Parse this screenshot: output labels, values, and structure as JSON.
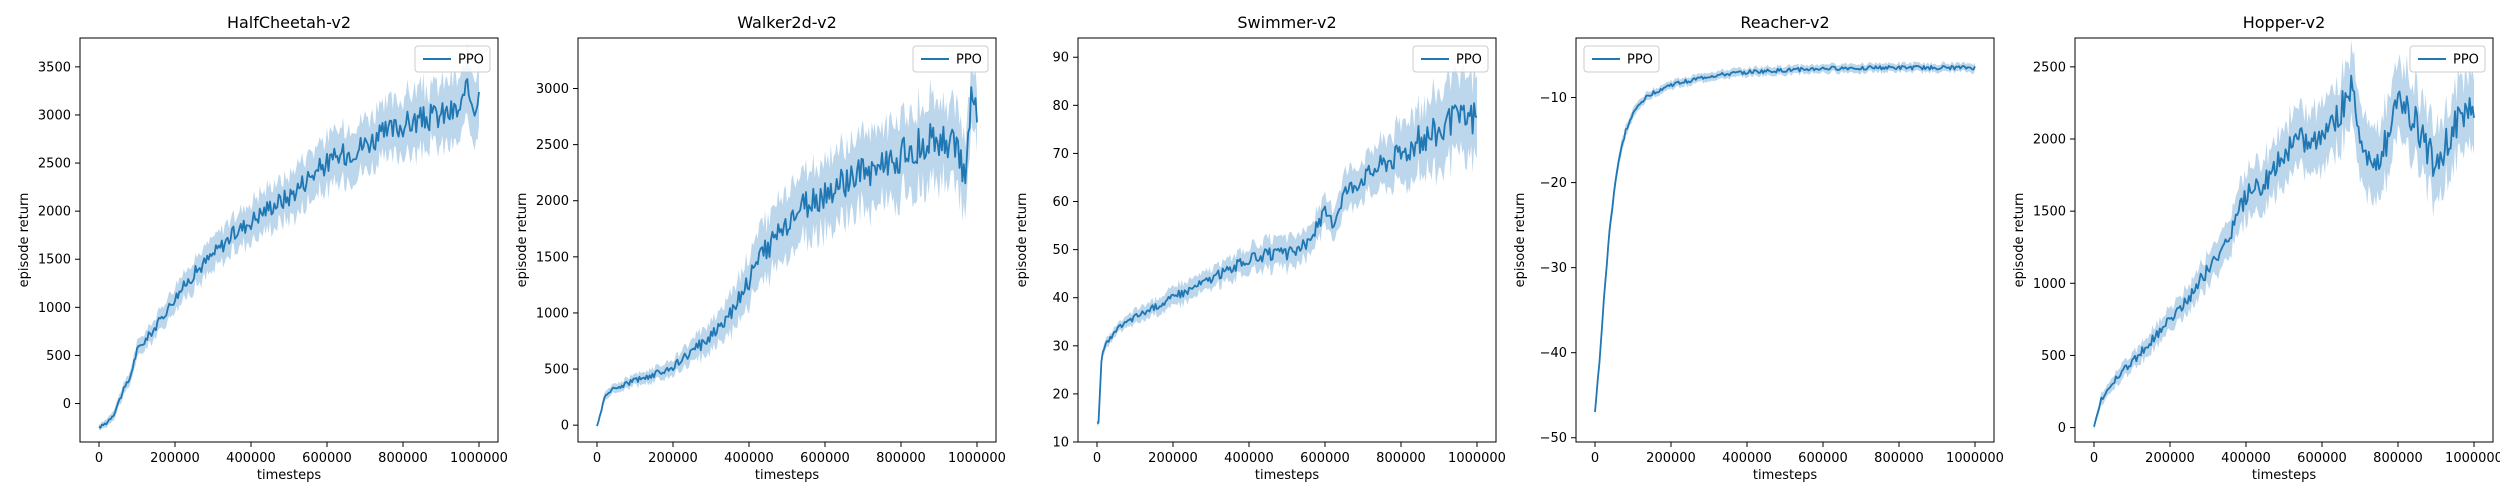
{
  "chart_data": [
    {
      "type": "line",
      "title": "HalfCheetah-v2",
      "xlabel": "timesteps",
      "ylabel": "episode return",
      "xlim": [
        -50000,
        1050000
      ],
      "ylim": [
        -400,
        3800
      ],
      "xticks": [
        0,
        200000,
        400000,
        600000,
        800000,
        1000000
      ],
      "xtick_labels": [
        "0",
        "200000",
        "400000",
        "600000",
        "800000",
        "1000000"
      ],
      "yticks": [
        0,
        500,
        1000,
        1500,
        2000,
        2500,
        3000,
        3500
      ],
      "ytick_labels": [
        "0",
        "500",
        "1000",
        "1500",
        "2000",
        "2500",
        "3000",
        "3500"
      ],
      "legend": "upper right",
      "series": [
        {
          "name": "PPO",
          "color": "#1f77b4",
          "band_color": "#a6c8e4",
          "x": [
            0,
            20000,
            40000,
            60000,
            80000,
            100000,
            120000,
            150000,
            200000,
            250000,
            300000,
            350000,
            400000,
            450000,
            500000,
            550000,
            600000,
            650000,
            700000,
            750000,
            800000,
            850000,
            900000,
            950000,
            970000,
            990000,
            1000000
          ],
          "y": [
            -250,
            -200,
            -100,
            100,
            250,
            550,
            650,
            800,
            1100,
            1350,
            1550,
            1750,
            1900,
            2050,
            2150,
            2350,
            2500,
            2600,
            2700,
            2800,
            2900,
            2950,
            3000,
            3050,
            3250,
            3100,
            3200
          ],
          "band": [
            30,
            40,
            50,
            60,
            70,
            80,
            90,
            100,
            120,
            150,
            170,
            180,
            200,
            220,
            240,
            250,
            260,
            270,
            280,
            290,
            300,
            310,
            320,
            330,
            330,
            330,
            320
          ]
        }
      ]
    },
    {
      "type": "line",
      "title": "Walker2d-v2",
      "xlabel": "timesteps",
      "ylabel": "episode return",
      "xlim": [
        -50000,
        1050000
      ],
      "ylim": [
        -150,
        3450
      ],
      "xticks": [
        0,
        200000,
        400000,
        600000,
        800000,
        1000000
      ],
      "xtick_labels": [
        "0",
        "200000",
        "400000",
        "600000",
        "800000",
        "1000000"
      ],
      "yticks": [
        0,
        500,
        1000,
        1500,
        2000,
        2500,
        3000
      ],
      "ytick_labels": [
        "0",
        "500",
        "1000",
        "1500",
        "2000",
        "2500",
        "3000"
      ],
      "legend": "upper right",
      "series": [
        {
          "name": "PPO",
          "color": "#1f77b4",
          "band_color": "#a6c8e4",
          "x": [
            0,
            10000,
            20000,
            30000,
            50000,
            100000,
            150000,
            200000,
            250000,
            300000,
            350000,
            400000,
            450000,
            500000,
            550000,
            600000,
            650000,
            700000,
            750000,
            800000,
            850000,
            900000,
            950000,
            970000,
            985000,
            1000000
          ],
          "y": [
            0,
            100,
            250,
            300,
            330,
            400,
            450,
            520,
            650,
            800,
            1000,
            1300,
            1600,
            1800,
            1950,
            2050,
            2150,
            2250,
            2300,
            2400,
            2500,
            2550,
            2500,
            2100,
            2900,
            2800
          ],
          "band": [
            20,
            30,
            40,
            40,
            40,
            50,
            60,
            70,
            100,
            130,
            170,
            220,
            260,
            280,
            300,
            310,
            320,
            330,
            340,
            350,
            350,
            350,
            350,
            350,
            300,
            250
          ]
        }
      ]
    },
    {
      "type": "line",
      "title": "Swimmer-v2",
      "xlabel": "timesteps",
      "ylabel": "episode return",
      "xlim": [
        -50000,
        1050000
      ],
      "ylim": [
        10,
        94
      ],
      "xticks": [
        0,
        200000,
        400000,
        600000,
        800000,
        1000000
      ],
      "xtick_labels": [
        "0",
        "200000",
        "400000",
        "600000",
        "800000",
        "1000000"
      ],
      "yticks": [
        10,
        20,
        30,
        40,
        50,
        60,
        70,
        80,
        90
      ],
      "ytick_labels": [
        "10",
        "20",
        "30",
        "40",
        "50",
        "60",
        "70",
        "80",
        "90"
      ],
      "legend": "upper right",
      "series": [
        {
          "name": "PPO",
          "color": "#1f77b4",
          "band_color": "#a6c8e4",
          "x": [
            0,
            5000,
            10000,
            15000,
            20000,
            40000,
            60000,
            100000,
            150000,
            200000,
            250000,
            300000,
            350000,
            400000,
            450000,
            500000,
            550000,
            580000,
            600000,
            620000,
            650000,
            700000,
            750000,
            800000,
            850000,
            900000,
            950000,
            1000000
          ],
          "y": [
            14,
            14,
            25,
            29,
            30,
            32,
            34,
            36,
            38,
            40,
            42,
            44,
            46,
            48,
            49,
            49,
            51,
            55,
            58,
            55,
            62,
            65,
            68,
            70,
            73,
            75,
            77,
            78
          ],
          "band": [
            0.5,
            0.5,
            1,
            1,
            1,
            1,
            1,
            1.5,
            1.5,
            2,
            2,
            2,
            2.5,
            2.5,
            3,
            3,
            3,
            3,
            3,
            3,
            4,
            4,
            5,
            6,
            7,
            8,
            8,
            9
          ]
        }
      ]
    },
    {
      "type": "line",
      "title": "Reacher-v2",
      "xlabel": "timesteps",
      "ylabel": "episode return",
      "xlim": [
        -50000,
        1050000
      ],
      "ylim": [
        -50.5,
        -3
      ],
      "xticks": [
        0,
        200000,
        400000,
        600000,
        800000,
        1000000
      ],
      "xtick_labels": [
        "0",
        "200000",
        "400000",
        "600000",
        "800000",
        "1000000"
      ],
      "yticks": [
        -50,
        -40,
        -30,
        -20,
        -10
      ],
      "ytick_labels": [
        "−50",
        "−40",
        "−30",
        "−20",
        "−10"
      ],
      "legend": "upper left",
      "series": [
        {
          "name": "PPO",
          "color": "#1f77b4",
          "band_color": "#a6c8e4",
          "x": [
            0,
            10000,
            20000,
            30000,
            40000,
            50000,
            60000,
            70000,
            80000,
            90000,
            100000,
            120000,
            150000,
            200000,
            250000,
            300000,
            400000,
            500000,
            600000,
            700000,
            800000,
            900000,
            1000000
          ],
          "y": [
            -47,
            -42,
            -36,
            -30,
            -25,
            -21,
            -18,
            -16,
            -14,
            -13,
            -12,
            -10.5,
            -9.5,
            -8.5,
            -8,
            -7.5,
            -7,
            -6.8,
            -6.6,
            -6.5,
            -6.5,
            -6.5,
            -6.5
          ],
          "band": [
            0.5,
            0.8,
            1,
            1,
            1,
            1,
            0.8,
            0.8,
            0.7,
            0.6,
            0.6,
            0.5,
            0.5,
            0.5,
            0.5,
            0.5,
            0.5,
            0.5,
            0.5,
            0.5,
            0.5,
            0.5,
            0.5
          ]
        }
      ]
    },
    {
      "type": "line",
      "title": "Hopper-v2",
      "xlabel": "timesteps",
      "ylabel": "episode return",
      "xlim": [
        -50000,
        1050000
      ],
      "ylim": [
        -100,
        2700
      ],
      "xticks": [
        0,
        200000,
        400000,
        600000,
        800000,
        1000000
      ],
      "xtick_labels": [
        "0",
        "200000",
        "400000",
        "600000",
        "800000",
        "1000000"
      ],
      "yticks": [
        0,
        500,
        1000,
        1500,
        2000,
        2500
      ],
      "ytick_labels": [
        "0",
        "500",
        "1000",
        "1500",
        "2000",
        "2500"
      ],
      "legend": "upper right",
      "series": [
        {
          "name": "PPO",
          "color": "#1f77b4",
          "band_color": "#a6c8e4",
          "x": [
            0,
            10000,
            20000,
            40000,
            60000,
            100000,
            150000,
            200000,
            250000,
            300000,
            350000,
            400000,
            450000,
            500000,
            550000,
            600000,
            650000,
            680000,
            700000,
            750000,
            800000,
            850000,
            900000,
            950000,
            1000000
          ],
          "y": [
            0,
            100,
            200,
            280,
            350,
            450,
            600,
            750,
            900,
            1100,
            1300,
            1600,
            1700,
            1900,
            2000,
            2000,
            2200,
            2400,
            2000,
            1800,
            2300,
            2100,
            1800,
            2100,
            2200
          ],
          "band": [
            20,
            30,
            40,
            40,
            50,
            60,
            70,
            80,
            90,
            110,
            130,
            160,
            180,
            200,
            200,
            220,
            240,
            250,
            250,
            250,
            250,
            250,
            250,
            250,
            250
          ]
        }
      ]
    }
  ]
}
